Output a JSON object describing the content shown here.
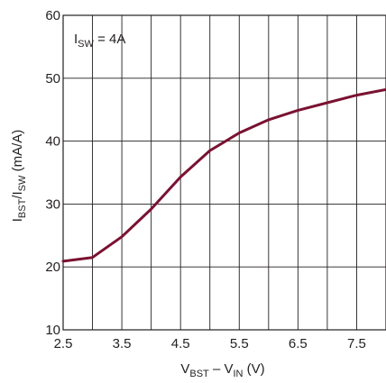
{
  "chart_data": {
    "type": "line",
    "title": "",
    "annotation": {
      "main": "I",
      "sub": "SW",
      "rest": " = 4A"
    },
    "xlabel": {
      "p1": "V",
      "s1": "BST",
      "p2": " – V",
      "s2": "IN",
      "p3": " (V)"
    },
    "ylabel": {
      "p1": "I",
      "s1": "BST",
      "p2": "/I",
      "s2": "SW",
      "p3": " (mA/A)"
    },
    "xlim": [
      2.5,
      8.0
    ],
    "ylim": [
      10,
      60
    ],
    "x_ticks": [
      2.5,
      3.5,
      4.5,
      5.5,
      6.5,
      7.5
    ],
    "x_tick_labels": [
      "2.5",
      "3.5",
      "4.5",
      "5.5",
      "6.5",
      "7.5"
    ],
    "x_grid": [
      3.0,
      4.0,
      5.0,
      6.0,
      7.0
    ],
    "y_ticks": [
      10,
      20,
      30,
      40,
      50,
      60
    ],
    "y_tick_labels": [
      "10",
      "20",
      "30",
      "40",
      "50",
      "60"
    ],
    "grid": true,
    "series": [
      {
        "color": "#7a1232",
        "x": [
          2.5,
          3.0,
          3.5,
          4.0,
          4.5,
          5.0,
          5.5,
          6.0,
          6.5,
          7.0,
          7.5,
          8.0
        ],
        "y": [
          20.9,
          21.5,
          24.8,
          29.2,
          34.3,
          38.5,
          41.3,
          43.4,
          44.9,
          46.1,
          47.3,
          48.2
        ]
      }
    ]
  }
}
